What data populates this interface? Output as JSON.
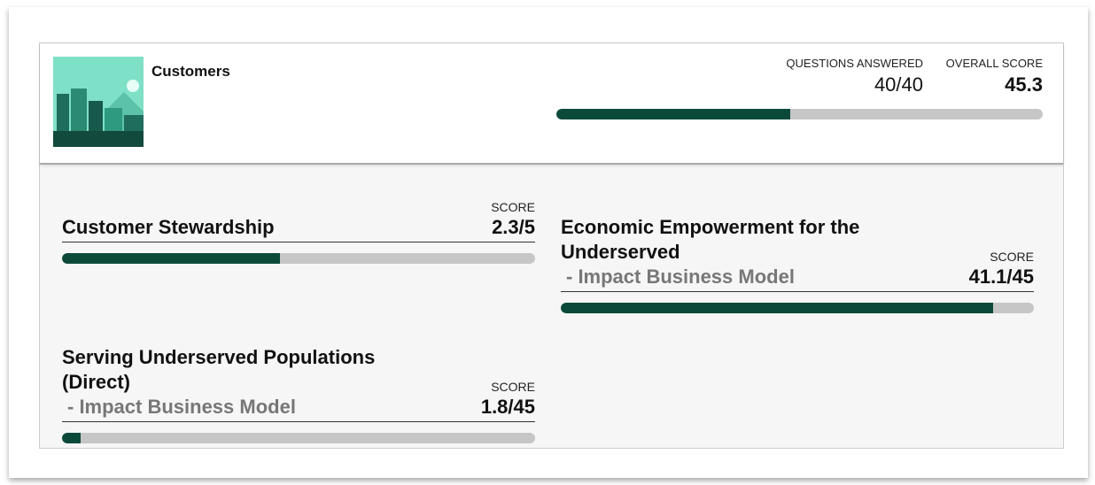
{
  "header": {
    "title": "Customers",
    "questions": {
      "heading": "QUESTIONS ANSWERED",
      "value": 40,
      "max": 40,
      "label": "40/40"
    },
    "overall": {
      "heading": "OVERALL SCORE",
      "value": 45.3,
      "progress": 48
    }
  },
  "sections": [
    {
      "title": "Customer Stewardship",
      "score_heading": "SCORE",
      "score": {
        "value": 2.3,
        "max": 5,
        "label": "2.3/5"
      }
    },
    {
      "title": "Economic Empowerment for the Underserved",
      "subtitle": "- Impact Business Model",
      "score_heading": "SCORE",
      "score": {
        "value": 41.1,
        "max": 45,
        "label": "41.1/45"
      }
    },
    {
      "title": "Serving Underserved Populations (Direct)",
      "subtitle": "- Impact Business Model",
      "score_heading": "SCORE",
      "score": {
        "value": 1.8,
        "max": 45,
        "label": "1.8/45"
      }
    }
  ]
}
